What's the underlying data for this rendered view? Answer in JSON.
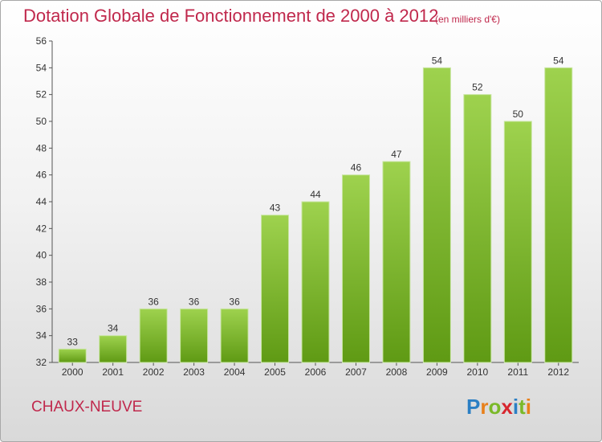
{
  "header": {
    "title": "Dotation Globale de Fonctionnement de 2000 à 2012",
    "subtitle": "(en milliers d'€)"
  },
  "footer": {
    "commune": "CHAUX-NEUVE",
    "brand": {
      "letters": [
        "P",
        "r",
        "o",
        "x",
        "i",
        "t",
        "i"
      ],
      "colors": [
        "#2b7fc4",
        "#e8801a",
        "#7ab929",
        "#d7262e",
        "#2b7fc4",
        "#7ab929",
        "#e8801a"
      ]
    }
  },
  "chart_data": {
    "type": "bar",
    "title": "Dotation Globale de Fonctionnement de 2000 à 2012",
    "subtitle": "(en milliers d'€)",
    "categories": [
      "2000",
      "2001",
      "2002",
      "2003",
      "2004",
      "2005",
      "2006",
      "2007",
      "2008",
      "2009",
      "2010",
      "2011",
      "2012"
    ],
    "values": [
      33,
      34,
      36,
      36,
      36,
      43,
      44,
      46,
      47,
      54,
      52,
      50,
      54
    ],
    "ylim": [
      32,
      56
    ],
    "yticks": [
      32,
      34,
      36,
      38,
      40,
      42,
      44,
      46,
      48,
      50,
      52,
      54,
      56
    ],
    "xlabel": "",
    "ylabel": "",
    "grid": false,
    "bar_color_top": "#9ed24e",
    "bar_color_bottom": "#5f9a14"
  }
}
